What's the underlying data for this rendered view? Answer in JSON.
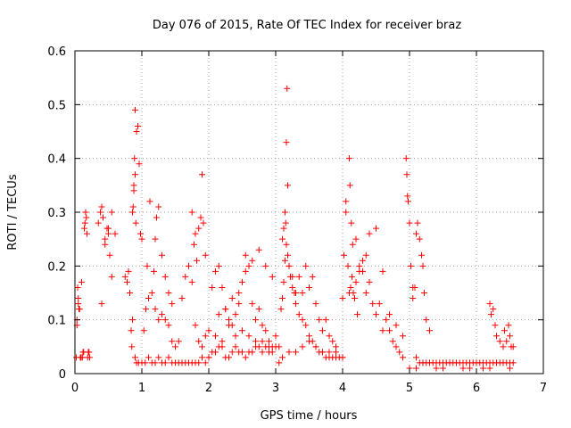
{
  "chart_data": {
    "type": "scatter",
    "title": "Day 076 of 2015, Rate Of TEC Index for receiver braz",
    "xlabel": "GPS time / hours",
    "ylabel": "ROTI / TECUs",
    "xlim": [
      0,
      7
    ],
    "ylim": [
      0,
      0.6
    ],
    "xticks": [
      0,
      1,
      2,
      3,
      4,
      5,
      6,
      7
    ],
    "xtick_labels": [
      "0",
      "1",
      "2",
      "3",
      "4",
      "5",
      "6",
      "7"
    ],
    "yticks": [
      0,
      0.1,
      0.2,
      0.3,
      0.4,
      0.5,
      0.6
    ],
    "ytick_labels": [
      "0",
      "0.1",
      "0.2",
      "0.3",
      "0.4",
      "0.5",
      "0.6"
    ],
    "grid": true,
    "marker": "+",
    "color": "#ff0000",
    "series": [
      {
        "name": "ROTI",
        "x": [
          0.02,
          0.03,
          0.04,
          0.05,
          0.06,
          0.08,
          0.1,
          0.12,
          0.14,
          0.16,
          0.18,
          0.2,
          0.22,
          0.03,
          0.05,
          0.07,
          0.09,
          0.11,
          0.13,
          0.15,
          0.17,
          0.19,
          0.21,
          0.35,
          0.38,
          0.4,
          0.42,
          0.45,
          0.48,
          0.5,
          0.52,
          0.55,
          0.4,
          0.45,
          0.5,
          0.55,
          0.6,
          0.75,
          0.78,
          0.8,
          0.82,
          0.84,
          0.86,
          0.88,
          0.9,
          0.92,
          0.94,
          0.96,
          0.98,
          1.0,
          0.87,
          0.88,
          0.89,
          0.9,
          0.91,
          0.86,
          0.85,
          0.9,
          0.92,
          0.95,
          1.0,
          1.05,
          1.1,
          1.15,
          1.2,
          1.25,
          1.3,
          1.35,
          1.4,
          1.45,
          1.5,
          1.55,
          1.6,
          1.65,
          1.7,
          1.75,
          1.8,
          1.85,
          1.9,
          1.95,
          2.0,
          1.1,
          1.15,
          1.2,
          1.25,
          1.3,
          1.35,
          1.4,
          1.45,
          1.5,
          1.55,
          1.6,
          1.65,
          1.7,
          1.75,
          1.8,
          1.85,
          1.9,
          1.95,
          2.0,
          1.2,
          1.22,
          1.25,
          1.3,
          1.35,
          1.4,
          1.45,
          1.03,
          1.06,
          1.08,
          1.12,
          1.18,
          1.8,
          1.85,
          1.88,
          1.9,
          1.92,
          1.95,
          1.75,
          1.78,
          1.82,
          2.0,
          2.05,
          2.1,
          2.15,
          2.2,
          2.25,
          2.3,
          2.35,
          2.4,
          2.45,
          2.5,
          2.55,
          2.6,
          2.65,
          2.7,
          2.75,
          2.8,
          2.85,
          2.9,
          2.95,
          3.0,
          2.05,
          2.1,
          2.15,
          2.2,
          2.25,
          2.3,
          2.35,
          2.4,
          2.45,
          2.5,
          2.55,
          2.6,
          2.65,
          2.7,
          2.75,
          2.8,
          2.85,
          2.9,
          2.95,
          2.1,
          2.2,
          2.3,
          2.4,
          2.5,
          2.6,
          2.7,
          2.8,
          2.9,
          2.15,
          2.25,
          2.35,
          2.45,
          2.55,
          2.65,
          2.75,
          2.85,
          2.95,
          3.0,
          3.05,
          3.1,
          3.12,
          3.14,
          3.15,
          3.16,
          3.18,
          3.2,
          3.22,
          3.25,
          3.28,
          3.3,
          3.35,
          3.4,
          3.45,
          3.5,
          3.55,
          3.6,
          3.65,
          3.7,
          3.75,
          3.8,
          3.85,
          3.9,
          3.95,
          4.0,
          3.17,
          3.16,
          3.18,
          3.14,
          3.1,
          3.08,
          3.12,
          3.2,
          3.25,
          3.3,
          3.35,
          3.4,
          3.45,
          3.5,
          3.55,
          3.6,
          3.65,
          3.7,
          3.75,
          3.8,
          3.85,
          3.9,
          3.05,
          3.1,
          3.2,
          3.3,
          3.4,
          3.5,
          3.6,
          3.7,
          3.8,
          3.9,
          4.0,
          4.0,
          4.05,
          4.08,
          4.1,
          4.12,
          4.14,
          4.16,
          4.18,
          4.2,
          4.22,
          4.25,
          4.3,
          4.35,
          4.4,
          4.45,
          4.5,
          4.55,
          4.6,
          4.65,
          4.7,
          4.75,
          4.8,
          4.85,
          4.9,
          4.1,
          4.11,
          4.13,
          4.05,
          4.02,
          4.15,
          4.2,
          4.25,
          4.3,
          4.35,
          4.4,
          4.5,
          4.6,
          4.7,
          4.8,
          4.9,
          4.95,
          4.96,
          4.97,
          4.98,
          5.0,
          5.02,
          5.05,
          5.1,
          5.15,
          5.2,
          5.25,
          5.3,
          5.35,
          5.4,
          5.45,
          5.5,
          5.55,
          5.6,
          5.65,
          5.7,
          5.75,
          5.8,
          5.85,
          5.9,
          5.95,
          6.0,
          6.05,
          6.1,
          6.15,
          6.2,
          6.25,
          6.3,
          6.35,
          6.4,
          6.45,
          6.5,
          6.55,
          5.1,
          5.12,
          5.15,
          5.18,
          5.2,
          5.22,
          5.25,
          5.3,
          5.05,
          5.08,
          6.2,
          6.22,
          6.25,
          6.28,
          6.3,
          6.35,
          6.4,
          6.45,
          6.5,
          6.55,
          6.42,
          6.48,
          6.52,
          5.0,
          5.2,
          5.4,
          5.6,
          5.8,
          6.0,
          6.2,
          6.4,
          5.1,
          5.3,
          5.5,
          5.7,
          5.9,
          6.1,
          6.3,
          6.5
        ],
        "y": [
          0.03,
          0.1,
          0.16,
          0.13,
          0.12,
          0.03,
          0.17,
          0.04,
          0.27,
          0.3,
          0.26,
          0.04,
          0.03,
          0.09,
          0.14,
          0.12,
          0.03,
          0.03,
          0.04,
          0.28,
          0.29,
          0.03,
          0.04,
          0.28,
          0.3,
          0.31,
          0.29,
          0.25,
          0.27,
          0.26,
          0.22,
          0.18,
          0.13,
          0.24,
          0.27,
          0.3,
          0.26,
          0.18,
          0.17,
          0.19,
          0.15,
          0.08,
          0.3,
          0.35,
          0.49,
          0.45,
          0.46,
          0.39,
          0.26,
          0.25,
          0.31,
          0.34,
          0.4,
          0.37,
          0.28,
          0.1,
          0.05,
          0.03,
          0.02,
          0.02,
          0.02,
          0.02,
          0.03,
          0.02,
          0.02,
          0.03,
          0.02,
          0.02,
          0.03,
          0.02,
          0.02,
          0.02,
          0.02,
          0.02,
          0.02,
          0.02,
          0.02,
          0.02,
          0.03,
          0.02,
          0.03,
          0.14,
          0.15,
          0.12,
          0.1,
          0.11,
          0.1,
          0.09,
          0.06,
          0.05,
          0.06,
          0.14,
          0.18,
          0.2,
          0.17,
          0.09,
          0.06,
          0.05,
          0.07,
          0.08,
          0.25,
          0.29,
          0.31,
          0.22,
          0.18,
          0.15,
          0.13,
          0.08,
          0.12,
          0.2,
          0.32,
          0.19,
          0.26,
          0.27,
          0.29,
          0.37,
          0.28,
          0.22,
          0.3,
          0.24,
          0.21,
          0.03,
          0.04,
          0.04,
          0.05,
          0.05,
          0.03,
          0.03,
          0.04,
          0.05,
          0.04,
          0.04,
          0.03,
          0.04,
          0.04,
          0.05,
          0.05,
          0.04,
          0.05,
          0.04,
          0.04,
          0.05,
          0.16,
          0.19,
          0.2,
          0.16,
          0.12,
          0.1,
          0.09,
          0.11,
          0.15,
          0.17,
          0.19,
          0.2,
          0.13,
          0.1,
          0.12,
          0.09,
          0.08,
          0.06,
          0.05,
          0.07,
          0.06,
          0.09,
          0.07,
          0.08,
          0.07,
          0.06,
          0.06,
          0.05,
          0.11,
          0.12,
          0.14,
          0.13,
          0.22,
          0.21,
          0.23,
          0.2,
          0.18,
          0.07,
          0.05,
          0.25,
          0.27,
          0.3,
          0.28,
          0.24,
          0.22,
          0.2,
          0.18,
          0.16,
          0.15,
          0.13,
          0.11,
          0.1,
          0.09,
          0.07,
          0.06,
          0.05,
          0.04,
          0.04,
          0.03,
          0.03,
          0.03,
          0.03,
          0.03,
          0.03,
          0.53,
          0.43,
          0.35,
          0.21,
          0.14,
          0.12,
          0.17,
          0.2,
          0.18,
          0.15,
          0.18,
          0.15,
          0.2,
          0.16,
          0.18,
          0.13,
          0.1,
          0.08,
          0.1,
          0.07,
          0.06,
          0.05,
          0.02,
          0.03,
          0.04,
          0.04,
          0.05,
          0.06,
          0.05,
          0.04,
          0.04,
          0.04,
          0.03,
          0.14,
          0.3,
          0.2,
          0.15,
          0.16,
          0.18,
          0.15,
          0.14,
          0.17,
          0.11,
          0.19,
          0.21,
          0.15,
          0.17,
          0.13,
          0.11,
          0.13,
          0.08,
          0.1,
          0.08,
          0.06,
          0.05,
          0.04,
          0.03,
          0.4,
          0.35,
          0.28,
          0.32,
          0.22,
          0.24,
          0.25,
          0.2,
          0.19,
          0.22,
          0.26,
          0.27,
          0.19,
          0.11,
          0.09,
          0.07,
          0.4,
          0.37,
          0.33,
          0.32,
          0.28,
          0.2,
          0.16,
          0.03,
          0.02,
          0.02,
          0.02,
          0.02,
          0.02,
          0.02,
          0.02,
          0.02,
          0.02,
          0.02,
          0.02,
          0.02,
          0.02,
          0.02,
          0.02,
          0.02,
          0.02,
          0.02,
          0.02,
          0.02,
          0.02,
          0.02,
          0.02,
          0.02,
          0.02,
          0.02,
          0.02,
          0.02,
          0.02,
          0.26,
          0.28,
          0.25,
          0.22,
          0.2,
          0.15,
          0.1,
          0.08,
          0.14,
          0.16,
          0.13,
          0.11,
          0.12,
          0.09,
          0.07,
          0.06,
          0.05,
          0.06,
          0.07,
          0.05,
          0.08,
          0.09,
          0.05,
          0.01,
          0.02,
          0.01,
          0.02,
          0.01,
          0.02,
          0.01,
          0.02,
          0.01,
          0.02,
          0.01,
          0.02,
          0.01,
          0.01,
          0.02,
          0.01
        ]
      }
    ]
  }
}
